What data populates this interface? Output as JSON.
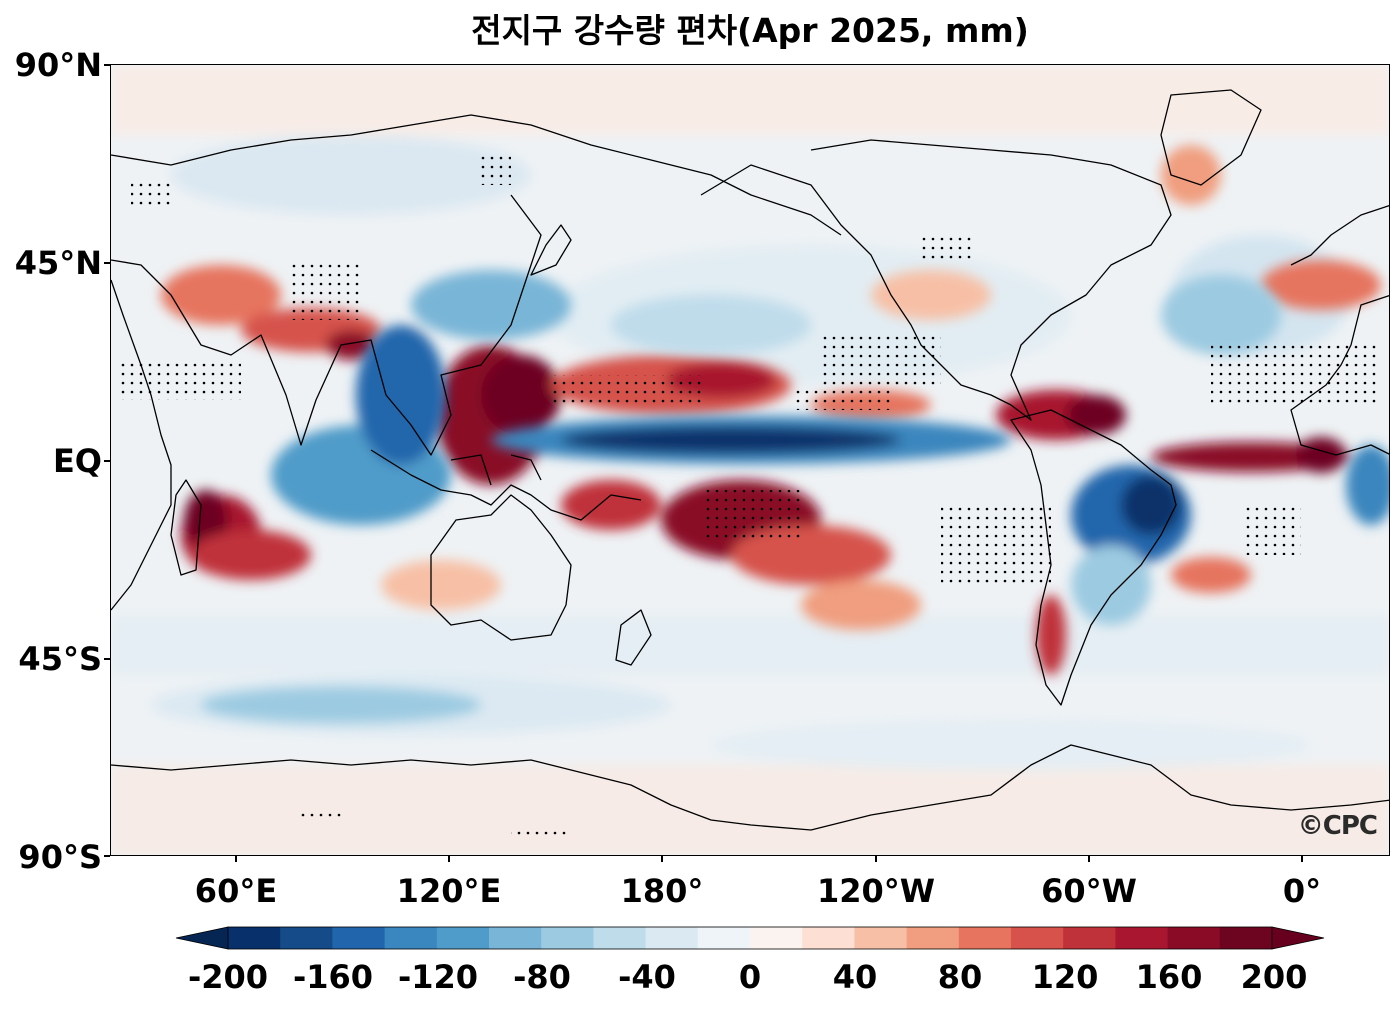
{
  "title": "전지구 강수량 편차(Apr 2025, mm)",
  "logo_text": "©CPC",
  "lat_labels": [
    "90°N",
    "45°N",
    "EQ",
    "45°S",
    "90°S"
  ],
  "lon_labels": [
    "60°E",
    "120°E",
    "180°",
    "120°W",
    "60°W",
    "0°"
  ],
  "colorbar": {
    "tick_labels": [
      "-200",
      "-160",
      "-120",
      "-80",
      "-40",
      "0",
      "40",
      "80",
      "120",
      "160",
      "200"
    ],
    "levels": [
      -200,
      -180,
      -160,
      -140,
      -120,
      -100,
      -80,
      -60,
      -40,
      -20,
      0,
      20,
      40,
      60,
      80,
      100,
      120,
      140,
      160,
      180,
      200
    ],
    "colors": [
      "#08306b",
      "#154b88",
      "#2166ac",
      "#3a86be",
      "#4f9bc9",
      "#79b5d7",
      "#9ccae1",
      "#bfdceb",
      "#dbeaf2",
      "#eef4f7",
      "#fbf3ef",
      "#fde0d3",
      "#f7c0a6",
      "#f09e7f",
      "#e6745e",
      "#d6524b",
      "#c0323a",
      "#a8172f",
      "#8a0b25",
      "#6d0520"
    ],
    "extend_min_color": "#052553",
    "extend_max_color": "#67001f"
  },
  "map": {
    "projection": "PlateCarree",
    "central_longitude": 160,
    "background_anomaly_color": "#eef2f5"
  }
}
